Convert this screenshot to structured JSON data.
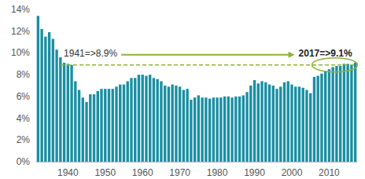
{
  "chart_data": {
    "type": "bar",
    "color": "#1a8fa3",
    "x": [
      1932,
      1933,
      1934,
      1935,
      1936,
      1937,
      1938,
      1939,
      1940,
      1941,
      1942,
      1943,
      1944,
      1945,
      1946,
      1947,
      1948,
      1949,
      1950,
      1951,
      1952,
      1953,
      1954,
      1955,
      1956,
      1957,
      1958,
      1959,
      1960,
      1961,
      1962,
      1963,
      1964,
      1965,
      1966,
      1967,
      1968,
      1969,
      1970,
      1971,
      1972,
      1973,
      1974,
      1975,
      1976,
      1977,
      1978,
      1979,
      1980,
      1981,
      1982,
      1983,
      1984,
      1985,
      1986,
      1987,
      1988,
      1989,
      1990,
      1991,
      1992,
      1993,
      1994,
      1995,
      1996,
      1997,
      1998,
      1999,
      2000,
      2001,
      2002,
      2003,
      2004,
      2005,
      2006,
      2007,
      2008,
      2009,
      2010,
      2011,
      2012,
      2013,
      2014,
      2015,
      2016,
      2017
    ],
    "values": [
      13.4,
      12.2,
      11.5,
      11.9,
      11.3,
      10.3,
      9.6,
      9.1,
      9.0,
      8.9,
      7.4,
      6.6,
      5.9,
      5.5,
      6.2,
      6.2,
      6.5,
      6.7,
      6.7,
      6.7,
      6.7,
      6.9,
      7.1,
      7.1,
      7.4,
      7.7,
      7.7,
      8.0,
      8.0,
      7.9,
      8.0,
      7.7,
      7.6,
      7.4,
      7.0,
      6.9,
      7.1,
      7.0,
      6.9,
      6.6,
      6.7,
      5.7,
      5.9,
      6.1,
      5.9,
      5.9,
      5.8,
      5.9,
      5.9,
      5.9,
      6.0,
      6.0,
      5.9,
      6.0,
      6.0,
      6.1,
      6.4,
      7.0,
      7.5,
      7.2,
      7.4,
      7.3,
      7.1,
      7.0,
      6.7,
      6.9,
      7.3,
      7.4,
      7.1,
      6.9,
      6.9,
      6.8,
      6.6,
      6.3,
      7.8,
      7.9,
      8.1,
      8.3,
      8.5,
      8.7,
      8.8,
      8.8,
      9.0,
      9.0,
      8.9,
      9.1
    ],
    "xlim": [
      1931.5,
      2017.5
    ],
    "xticks": [
      1940,
      1950,
      1960,
      1970,
      1980,
      1990,
      2000,
      2010
    ],
    "ylim": [
      0,
      14
    ],
    "yticks": [
      {
        "value": 0,
        "label": "0%"
      },
      {
        "value": 2,
        "label": "2%"
      },
      {
        "value": 4,
        "label": "4%"
      },
      {
        "value": 6,
        "label": "6%"
      },
      {
        "value": 8,
        "label": "8%"
      },
      {
        "value": 10,
        "label": "10%"
      },
      {
        "value": 12,
        "label": "12%"
      },
      {
        "value": 14,
        "label": "14%"
      }
    ],
    "grid": false,
    "annotations": [
      {
        "text": "1941=>8.9%",
        "x": 1941,
        "y": 8.9
      },
      {
        "text": "2017=>9.1%",
        "x": 2017,
        "y": 9.1
      }
    ]
  }
}
